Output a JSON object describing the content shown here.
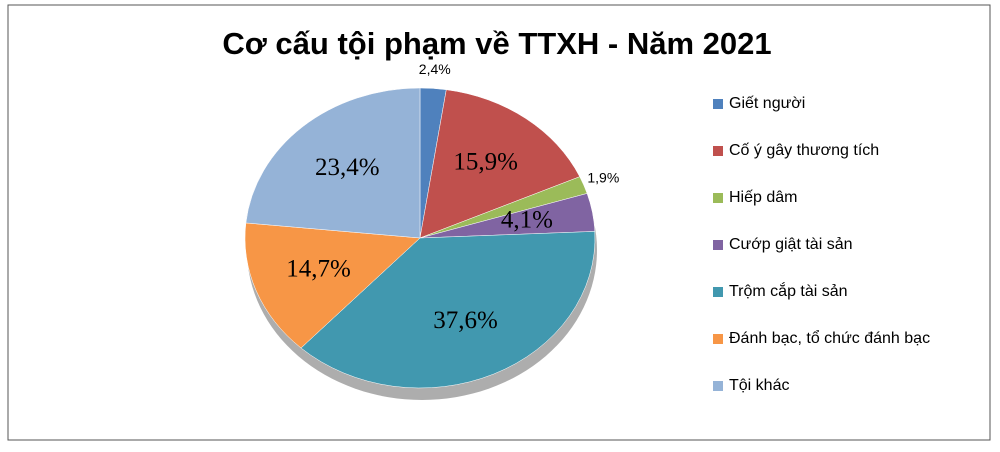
{
  "chart_data": {
    "type": "pie",
    "title": "Cơ cấu tội phạm về TTXH - Năm 2021",
    "categories": [
      "Giết người",
      "Cố ý gây thương tích",
      "Hiếp dâm",
      "Cướp giật tài sản",
      "Trộm cắp tài sản",
      "Đánh bạc, tổ chức đánh bạc",
      "Tội khác"
    ],
    "values": [
      2.4,
      15.9,
      1.9,
      4.1,
      37.6,
      14.7,
      23.4
    ],
    "value_labels": [
      "2,4%",
      "15,9%",
      "1,9%",
      "4,1%",
      "37,6%",
      "14,7%",
      "23,4%"
    ],
    "colors": [
      "#4f81bd",
      "#c0504d",
      "#9bbb59",
      "#8064a2",
      "#4198af",
      "#f79646",
      "#95b3d7"
    ],
    "legend": "right"
  }
}
